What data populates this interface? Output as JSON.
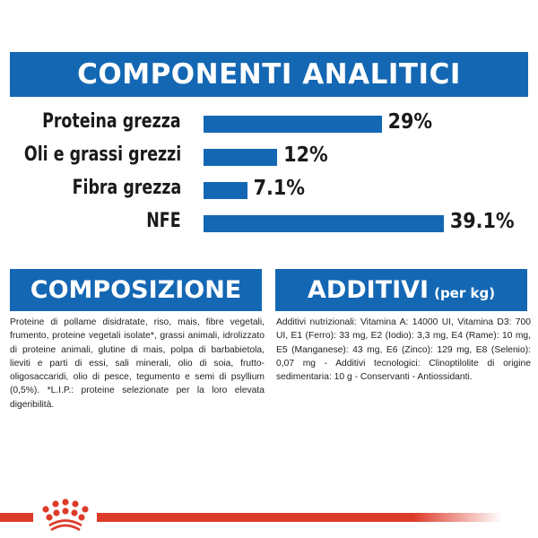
{
  "chart_data": {
    "type": "bar",
    "orientation": "horizontal",
    "title": "COMPONENTI ANALITICI",
    "categories": [
      "Proteina grezza",
      "Oli e grassi grezzi",
      "Fibra grezza",
      "NFE"
    ],
    "values": [
      29,
      12,
      7.1,
      39.1
    ],
    "value_labels": [
      "29%",
      "12%",
      "7.1%",
      "39.1%"
    ],
    "unit": "%",
    "grid": false,
    "bar_color": "#1467b3"
  },
  "composizione": {
    "title": "COMPOSIZIONE",
    "text": "Proteine di pollame disidratate, riso, mais, fibre vegetali, frumento, proteine vegetali isolate*, grassi animali, idrolizzato di proteine animali, glutine di mais, polpa di barbabietola, lieviti e parti di essi, sali minerali, olio di soia, frutto-oligosaccaridi, olio di pesce, tegumento e semi di psyllium (0,5%). *L.I.P.: proteine selezionate per la loro elevata digeribilità."
  },
  "additivi": {
    "title": "ADDITIVI",
    "subtitle": "(per kg)",
    "text": "Additivi nutrizionali: Vitamina A: 14000 UI, Vitamina D3: 700 UI, E1 (Ferro): 33 mg, E2 (Iodio): 3,3 mg, E4 (Rame): 10 mg, E5 (Manganese): 43 mg, E6 (Zinco): 129 mg, E8 (Selenio): 0,07 mg - Additivi tecnologici: Clinoptilolite di origine sedimentaria: 10 g - Conservanti - Antiossidanti."
  },
  "colors": {
    "brand_blue": "#1467b3",
    "brand_red": "#dd3b2a"
  },
  "logo": {
    "icon": "royal-canin-crown-icon"
  }
}
